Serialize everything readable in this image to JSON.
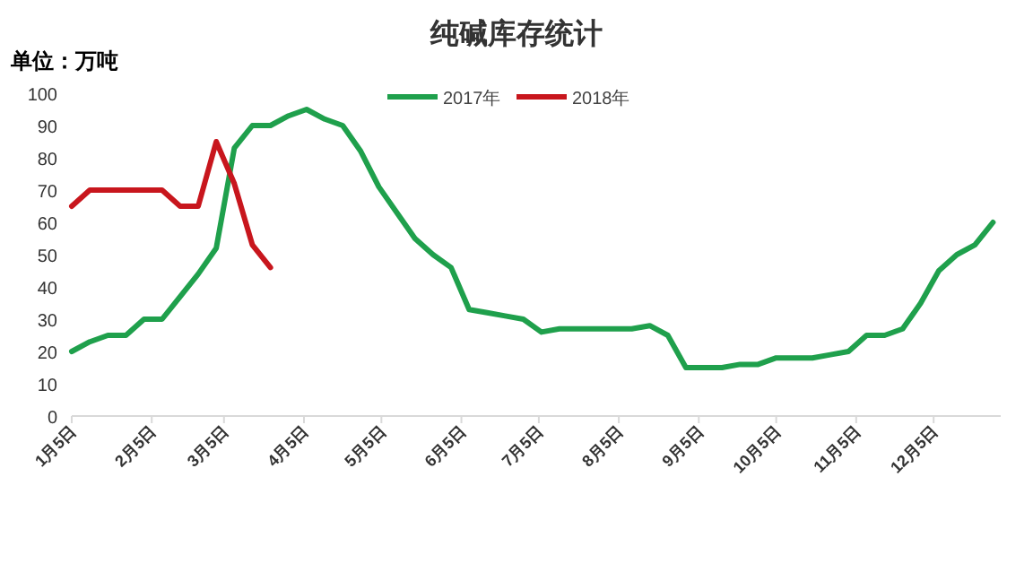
{
  "chart_data": {
    "type": "line",
    "title": "纯碱库存统计",
    "ylabel": "单位：万吨",
    "legend": "top",
    "x": [
      "--01-05",
      "--01-12",
      "--01-19",
      "--01-26",
      "--02-02",
      "--02-09",
      "--02-16",
      "--02-23",
      "--03-02",
      "--03-09",
      "--03-16",
      "--03-23",
      "--03-30",
      "--04-06",
      "--04-13",
      "--04-20",
      "--04-27",
      "--05-04",
      "--05-11",
      "--05-18",
      "--05-25",
      "--06-01",
      "--06-08",
      "--06-15",
      "--06-22",
      "--06-29",
      "--07-06",
      "--07-13",
      "--07-20",
      "--07-27",
      "--08-03",
      "--08-10",
      "--08-17",
      "--08-24",
      "--08-31",
      "--09-07",
      "--09-14",
      "--09-21",
      "--09-28",
      "--10-05",
      "--10-12",
      "--10-19",
      "--10-26",
      "--11-02",
      "--11-09",
      "--11-16",
      "--11-23",
      "--11-30",
      "--12-07",
      "--12-14",
      "--12-21",
      "--12-28"
    ],
    "xlim": [
      "--01-05",
      "--12-31"
    ],
    "xticks": [
      {
        "value": "--01-05",
        "label": "1月5日"
      },
      {
        "value": "--02-05",
        "label": "2月5日"
      },
      {
        "value": "--03-05",
        "label": "3月5日"
      },
      {
        "value": "--04-05",
        "label": "4月5日"
      },
      {
        "value": "--05-05",
        "label": "5月5日"
      },
      {
        "value": "--06-05",
        "label": "6月5日"
      },
      {
        "value": "--07-05",
        "label": "7月5日"
      },
      {
        "value": "--08-05",
        "label": "8月5日"
      },
      {
        "value": "--09-05",
        "label": "9月5日"
      },
      {
        "value": "--10-05",
        "label": "10月5日"
      },
      {
        "value": "--11-05",
        "label": "11月5日"
      },
      {
        "value": "--12-05",
        "label": "12月5日"
      }
    ],
    "ylim": [
      0,
      100
    ],
    "yticks": [
      0,
      10,
      20,
      30,
      40,
      50,
      60,
      70,
      80,
      90,
      100
    ],
    "series": [
      {
        "name": "2017年",
        "color": "#1fa04c",
        "values": [
          20,
          23,
          25,
          25,
          30,
          30,
          37,
          44,
          52,
          83,
          90,
          90,
          93,
          95,
          92,
          90,
          82,
          71,
          63,
          55,
          50,
          46,
          33,
          32,
          31,
          30,
          26,
          27,
          27,
          27,
          27,
          27,
          28,
          25,
          15,
          15,
          15,
          16,
          16,
          18,
          18,
          18,
          19,
          20,
          25,
          25,
          27,
          35,
          45,
          50,
          53,
          60
        ]
      },
      {
        "name": "2018年",
        "color": "#c8161d",
        "x": [
          "--01-05",
          "--01-12",
          "--01-19",
          "--01-26",
          "--02-02",
          "--02-09",
          "--02-16",
          "--02-23",
          "--03-02",
          "--03-09",
          "--03-16",
          "--03-23"
        ],
        "values": [
          65,
          70,
          70,
          70,
          70,
          70,
          65,
          65,
          85,
          72,
          53,
          46
        ]
      }
    ]
  }
}
